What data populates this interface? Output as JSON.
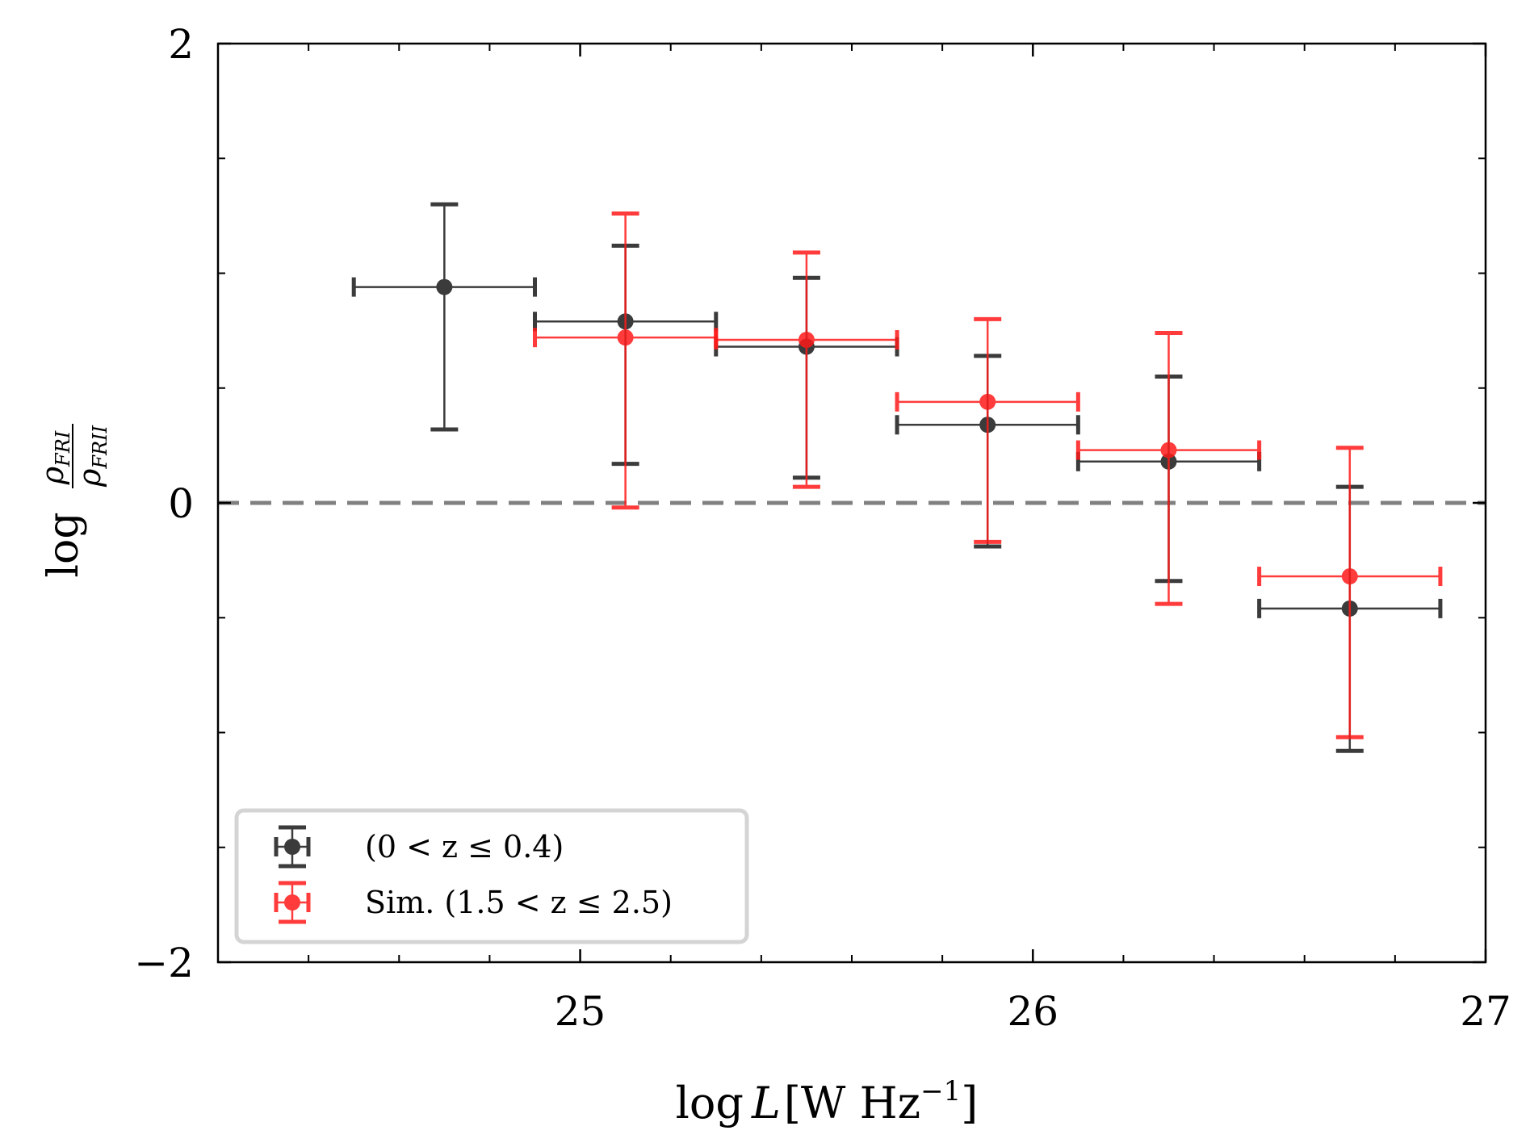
{
  "chart_data": {
    "type": "scatter",
    "title": "",
    "xlabel": "log L [W Hz⁻¹]",
    "ylabel": "log ρ_FRI / ρ_FRII",
    "xlim": [
      24.2,
      27.0
    ],
    "ylim": [
      -2,
      2
    ],
    "x_ticks": [
      25,
      26,
      27
    ],
    "x_tick_labels": [
      "25",
      "26",
      "27"
    ],
    "y_ticks": [
      -2,
      0,
      2
    ],
    "y_tick_labels": [
      "−2",
      "0",
      "2"
    ],
    "reference_line": {
      "y": 0,
      "style": "dashed",
      "color": "#808080"
    },
    "legend_location": "lower-left",
    "series": [
      {
        "name": "(0 < z ≤ 0.4)",
        "color": "#1a1a1a",
        "points": [
          {
            "x": 24.7,
            "y": 0.94,
            "xerr": 0.2,
            "yerr_low": 0.62,
            "yerr_high": 0.36
          },
          {
            "x": 25.1,
            "y": 0.79,
            "xerr": 0.2,
            "yerr_low": 0.62,
            "yerr_high": 0.33
          },
          {
            "x": 25.5,
            "y": 0.68,
            "xerr": 0.2,
            "yerr_low": 0.57,
            "yerr_high": 0.3
          },
          {
            "x": 25.9,
            "y": 0.34,
            "xerr": 0.2,
            "yerr_low": 0.53,
            "yerr_high": 0.3
          },
          {
            "x": 26.3,
            "y": 0.18,
            "xerr": 0.2,
            "yerr_low": 0.52,
            "yerr_high": 0.37
          },
          {
            "x": 26.7,
            "y": -0.46,
            "xerr": 0.2,
            "yerr_low": 0.62,
            "yerr_high": 0.53
          }
        ]
      },
      {
        "name": "Sim. (1.5 < z ≤ 2.5)",
        "color": "#ff1a1a",
        "points": [
          {
            "x": 25.1,
            "y": 0.72,
            "xerr": 0.2,
            "yerr_low": 0.74,
            "yerr_high": 0.54
          },
          {
            "x": 25.5,
            "y": 0.71,
            "xerr": 0.2,
            "yerr_low": 0.64,
            "yerr_high": 0.38
          },
          {
            "x": 25.9,
            "y": 0.44,
            "xerr": 0.2,
            "yerr_low": 0.61,
            "yerr_high": 0.36
          },
          {
            "x": 26.3,
            "y": 0.23,
            "xerr": 0.2,
            "yerr_low": 0.67,
            "yerr_high": 0.51
          },
          {
            "x": 26.7,
            "y": -0.32,
            "xerr": 0.2,
            "yerr_low": 0.7,
            "yerr_high": 0.56
          }
        ]
      }
    ]
  }
}
